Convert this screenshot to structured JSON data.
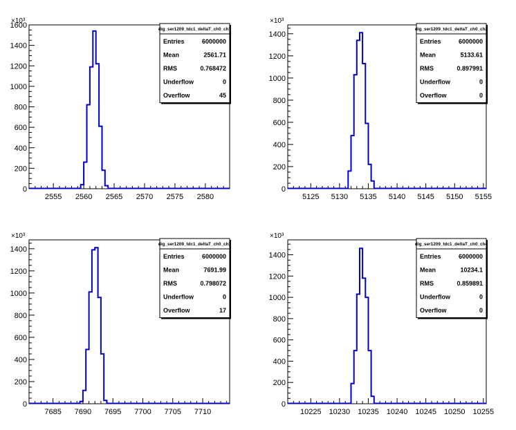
{
  "chart_data": [
    {
      "type": "histogram",
      "name": "dig_ser1209_tdc1_deltaT_ch0_ch1",
      "xlim": [
        2551,
        2584
      ],
      "ylim": [
        0,
        1600
      ],
      "y_multiplier": "×10³",
      "xticks": [
        2555,
        2560,
        2565,
        2570,
        2575,
        2580
      ],
      "yticks": [
        0,
        200,
        400,
        600,
        800,
        1000,
        1200,
        1400,
        1600
      ],
      "bin_width": 0.5,
      "bins_left": [
        2559.5,
        2560,
        2560.5,
        2561,
        2561.5,
        2562,
        2562.5,
        2563,
        2563.5
      ],
      "counts": [
        40,
        260,
        820,
        1190,
        1540,
        1220,
        610,
        180,
        30
      ],
      "stats": [
        {
          "label": "Entries",
          "value": "6000000"
        },
        {
          "label": "Mean",
          "value": "2561.71"
        },
        {
          "label": "RMS",
          "value": "0.768472"
        },
        {
          "label": "Underflow",
          "value": "0"
        },
        {
          "label": "Overflow",
          "value": "45"
        }
      ]
    },
    {
      "type": "histogram",
      "name": "dig_ser1209_tdc1_deltaT_ch0_ch2",
      "xlim": [
        5121,
        5155.5
      ],
      "ylim": [
        0,
        1480
      ],
      "y_multiplier": "×10³",
      "xticks": [
        5125,
        5130,
        5135,
        5140,
        5145,
        5150,
        5155
      ],
      "yticks": [
        0,
        200,
        400,
        600,
        800,
        1000,
        1200,
        1400
      ],
      "bin_width": 0.5,
      "bins_left": [
        5131.5,
        5132,
        5132.5,
        5133,
        5133.5,
        5134,
        5134.5,
        5135,
        5135.5
      ],
      "counts": [
        160,
        480,
        1030,
        1340,
        1410,
        1130,
        590,
        220,
        70
      ],
      "stats": [
        {
          "label": "Entries",
          "value": "6000000"
        },
        {
          "label": "Mean",
          "value": "5133.61"
        },
        {
          "label": "RMS",
          "value": "0.897991"
        },
        {
          "label": "Underflow",
          "value": "0"
        },
        {
          "label": "Overflow",
          "value": "0"
        }
      ]
    },
    {
      "type": "histogram",
      "name": "dig_ser1209_tdc1_deltaT_ch0_ch3",
      "xlim": [
        7681,
        7714.5
      ],
      "ylim": [
        0,
        1480
      ],
      "y_multiplier": "×10³",
      "xticks": [
        7685,
        7690,
        7695,
        7700,
        7705,
        7710
      ],
      "yticks": [
        0,
        200,
        400,
        600,
        800,
        1000,
        1200,
        1400
      ],
      "bin_width": 0.5,
      "bins_left": [
        7689.5,
        7690,
        7690.5,
        7691,
        7691.5,
        7692,
        7692.5,
        7693,
        7693.5
      ],
      "counts": [
        20,
        120,
        490,
        1010,
        1390,
        1410,
        960,
        450,
        30
      ],
      "stats": [
        {
          "label": "Entries",
          "value": "6000000"
        },
        {
          "label": "Mean",
          "value": "7691.99"
        },
        {
          "label": "RMS",
          "value": "0.798072"
        },
        {
          "label": "Underflow",
          "value": "0"
        },
        {
          "label": "Overflow",
          "value": "17"
        }
      ]
    },
    {
      "type": "histogram",
      "name": "dig_ser1209_tdc1_deltaT_ch0_ch4",
      "xlim": [
        10221,
        10255.5
      ],
      "ylim": [
        0,
        1540
      ],
      "y_multiplier": "×10³",
      "xticks": [
        10225,
        10230,
        10235,
        10240,
        10245,
        10250,
        10255
      ],
      "yticks": [
        0,
        200,
        400,
        600,
        800,
        1000,
        1200,
        1400
      ],
      "bin_width": 0.5,
      "bins_left": [
        10232,
        10232.5,
        10233,
        10233.5,
        10234,
        10234.5,
        10235,
        10235.5
      ],
      "counts": [
        190,
        500,
        1030,
        1460,
        1180,
        1000,
        500,
        70
      ],
      "stats": [
        {
          "label": "Entries",
          "value": "6000000"
        },
        {
          "label": "Mean",
          "value": "10234.1"
        },
        {
          "label": "RMS",
          "value": "0.859891"
        },
        {
          "label": "Underflow",
          "value": "0"
        },
        {
          "label": "Overflow",
          "value": "0"
        }
      ]
    }
  ],
  "colors": {
    "histogram_line": "#0000cc",
    "axis": "#000000",
    "background": "#ffffff"
  }
}
